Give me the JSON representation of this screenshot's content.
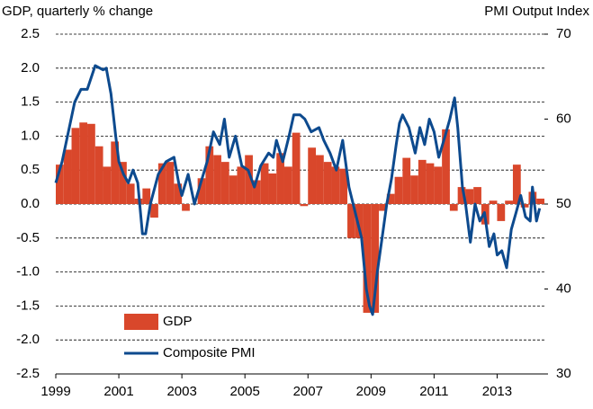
{
  "chart_data": {
    "type": "bar-line",
    "y_axis_label": "GDP, quarterly % change",
    "y2_axis_label": "PMI Output  Index",
    "xlim": [
      1999,
      2014.5
    ],
    "xticks": [
      1999,
      2001,
      2003,
      2005,
      2007,
      2009,
      2011,
      2013
    ],
    "ylim": [
      -2.5,
      2.5
    ],
    "yticks": [
      2.5,
      {
        "value": 2,
        "label": "2.0"
      },
      1.5,
      {
        "value": 1,
        "label": "1.0"
      },
      0.5,
      {
        "value": 0,
        "label": "0.0"
      },
      -0.5,
      {
        "value": -1,
        "label": "-1.0"
      },
      -1.5,
      {
        "value": -2,
        "label": "-2.0"
      },
      -2.5
    ],
    "y2lim": [
      30,
      70
    ],
    "y2ticks": [
      70,
      60,
      50,
      40,
      30
    ],
    "grid": true,
    "legend": "lower-left",
    "series": [
      {
        "name": "GDP",
        "type": "bar",
        "color": "#d9472b",
        "x": [
          1999.125,
          1999.375,
          1999.625,
          1999.875,
          2000.125,
          2000.375,
          2000.625,
          2000.875,
          2001.125,
          2001.375,
          2001.625,
          2001.875,
          2002.125,
          2002.375,
          2002.625,
          2002.875,
          2003.125,
          2003.375,
          2003.625,
          2003.875,
          2004.125,
          2004.375,
          2004.625,
          2004.875,
          2005.125,
          2005.375,
          2005.625,
          2005.875,
          2006.125,
          2006.375,
          2006.625,
          2006.875,
          2007.125,
          2007.375,
          2007.625,
          2007.875,
          2008.125,
          2008.375,
          2008.625,
          2008.875,
          2009.125,
          2009.375,
          2009.625,
          2009.875,
          2010.125,
          2010.375,
          2010.625,
          2010.875,
          2011.125,
          2011.375,
          2011.625,
          2011.875,
          2012.125,
          2012.375,
          2012.625,
          2012.875,
          2013.125,
          2013.375,
          2013.625,
          2013.875,
          2014.125,
          2014.375
        ],
        "values": [
          0.58,
          0.8,
          1.12,
          1.2,
          1.18,
          0.85,
          0.55,
          0.92,
          0.62,
          0.3,
          0.08,
          0.23,
          -0.2,
          0.6,
          0.62,
          0.3,
          -0.1,
          0.0,
          0.38,
          0.85,
          0.72,
          0.62,
          0.42,
          0.55,
          0.72,
          0.35,
          0.6,
          0.45,
          0.75,
          0.55,
          1.05,
          -0.03,
          0.83,
          0.72,
          0.62,
          0.55,
          0.52,
          -0.5,
          -0.5,
          -1.6,
          -1.6,
          -0.1,
          0.15,
          0.4,
          0.68,
          0.42,
          0.65,
          0.6,
          0.55,
          1.1,
          -0.1,
          0.25,
          0.22,
          0.25,
          -0.3,
          0.05,
          -0.25,
          0.05,
          0.58,
          -0.05,
          0.18,
          0.08
        ]
      },
      {
        "name": "Composite PMI",
        "type": "line",
        "axis": "y2",
        "color": "#0d4a8e",
        "x": [
          1999.0,
          1999.2,
          1999.4,
          1999.6,
          1999.8,
          2000.0,
          2000.25,
          2000.5,
          2000.6,
          2000.75,
          2000.9,
          2001.0,
          2001.15,
          2001.3,
          2001.45,
          2001.6,
          2001.75,
          2001.85,
          2002.0,
          2002.25,
          2002.5,
          2002.75,
          2002.9,
          2003.0,
          2003.2,
          2003.4,
          2003.6,
          2003.8,
          2004.0,
          2004.2,
          2004.35,
          2004.5,
          2004.7,
          2004.9,
          2005.1,
          2005.3,
          2005.5,
          2005.75,
          2005.9,
          2006.0,
          2006.2,
          2006.4,
          2006.55,
          2006.75,
          2006.9,
          2007.1,
          2007.35,
          2007.5,
          2007.7,
          2007.9,
          2008.1,
          2008.3,
          2008.5,
          2008.7,
          2008.85,
          2008.95,
          2009.05,
          2009.2,
          2009.35,
          2009.5,
          2009.65,
          2009.8,
          2009.9,
          2010.0,
          2010.2,
          2010.4,
          2010.55,
          2010.7,
          2010.85,
          2011.0,
          2011.15,
          2011.35,
          2011.5,
          2011.65,
          2011.75,
          2011.9,
          2012.0,
          2012.15,
          2012.3,
          2012.45,
          2012.6,
          2012.75,
          2012.9,
          2013.0,
          2013.15,
          2013.3,
          2013.45,
          2013.6,
          2013.75,
          2013.9,
          2014.05,
          2014.12,
          2014.25,
          2014.35
        ],
        "values": [
          52.5,
          55,
          58.5,
          62,
          63.5,
          63.5,
          66.3,
          65.8,
          66,
          63,
          58,
          55,
          53.5,
          52.5,
          54,
          52.5,
          46.5,
          46.5,
          50,
          53.5,
          55,
          55.5,
          52.5,
          51,
          53.5,
          50,
          52.5,
          55,
          58.5,
          57,
          60,
          55.5,
          58,
          54.5,
          54,
          52,
          54.5,
          56,
          55.5,
          57.5,
          55,
          58,
          60.5,
          60.5,
          60,
          58.5,
          59,
          57.5,
          56,
          54,
          57.5,
          52,
          49,
          46,
          40,
          38,
          37,
          42,
          46,
          50,
          53,
          57,
          59.5,
          60.5,
          59,
          56,
          59,
          57,
          60,
          58.5,
          55.5,
          58,
          60,
          62.5,
          59,
          52,
          50,
          45.5,
          50,
          48,
          49,
          45,
          46.5,
          44,
          44.5,
          42.5,
          47,
          49,
          51,
          48.5,
          48,
          52,
          48,
          49.5
        ]
      }
    ]
  }
}
